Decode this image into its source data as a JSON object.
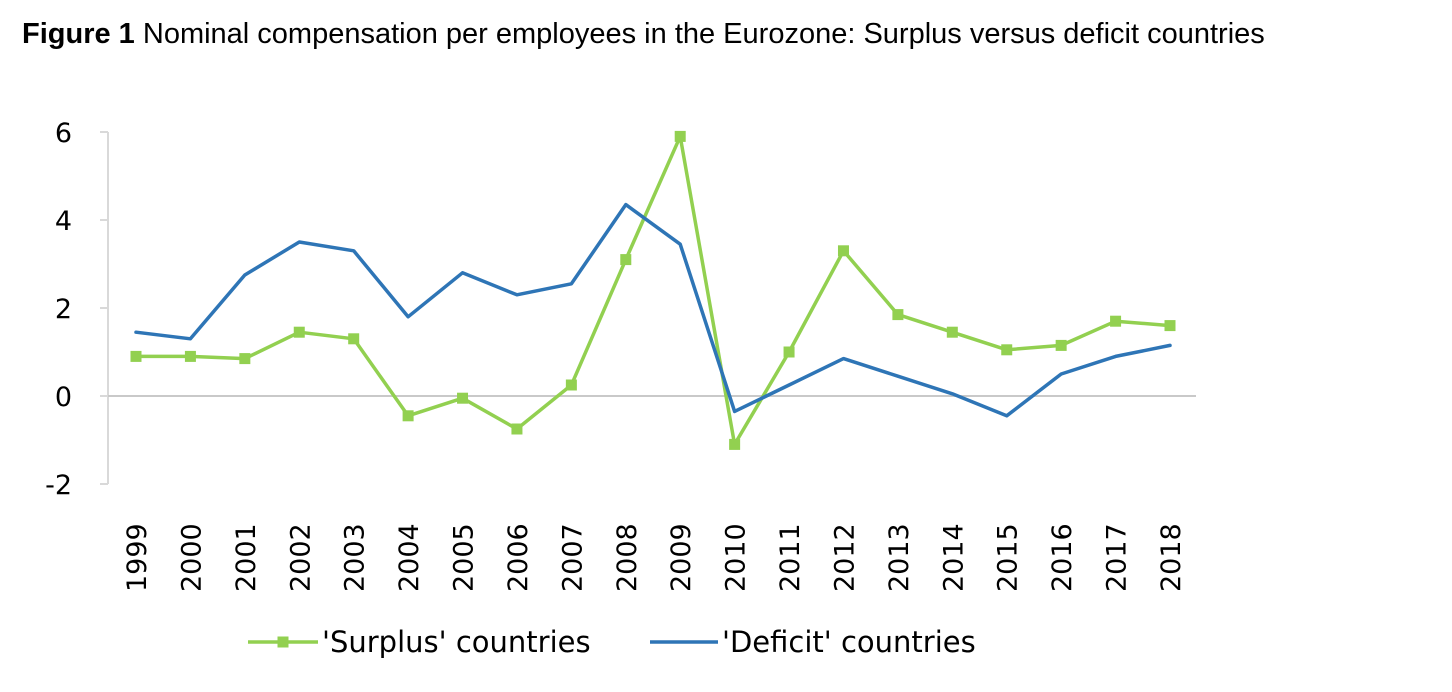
{
  "figure": {
    "label": "Figure 1",
    "caption": "Nominal compensation per employees in the Eurozone: Surplus versus deficit countries"
  },
  "chart_data": {
    "type": "line",
    "title": "Figure 1 Nominal compensation per employees in the Eurozone: Surplus versus deficit countries",
    "xlabel": "",
    "ylabel": "",
    "x": [
      "1999",
      "2000",
      "2001",
      "2002",
      "2003",
      "2004",
      "2005",
      "2006",
      "2007",
      "2008",
      "2009",
      "2010",
      "2011",
      "2012",
      "2013",
      "2014",
      "2015",
      "2016",
      "2017",
      "2018"
    ],
    "ylim": [
      -2,
      6
    ],
    "yticks": [
      -2,
      0,
      2,
      4,
      6
    ],
    "ytick_labels": [
      "-2",
      "0",
      "2",
      "4",
      "6"
    ],
    "grid": false,
    "zero_line": true,
    "legend_position": "bottom",
    "series": [
      {
        "name": "'Surplus' countries",
        "color": "#92d050",
        "marker": "square",
        "values": [
          0.9,
          0.9,
          0.85,
          1.45,
          1.3,
          -0.45,
          -0.05,
          -0.75,
          0.25,
          3.1,
          5.9,
          -1.1,
          1.0,
          3.3,
          1.85,
          1.45,
          1.05,
          1.15,
          1.7,
          1.6
        ]
      },
      {
        "name": "'Deficit' countries",
        "color": "#2e75b6",
        "marker": "none",
        "values": [
          1.45,
          1.3,
          2.75,
          3.5,
          3.3,
          1.8,
          2.8,
          2.3,
          2.55,
          4.35,
          3.45,
          -0.35,
          0.25,
          0.85,
          0.45,
          0.05,
          -0.45,
          0.5,
          0.9,
          1.15
        ]
      }
    ]
  }
}
